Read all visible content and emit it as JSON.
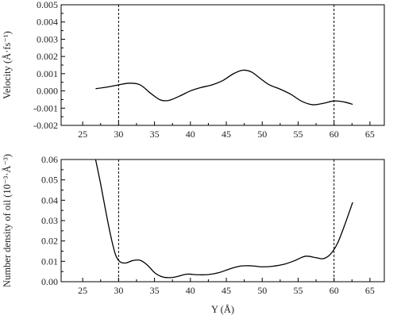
{
  "chart_data": [
    {
      "type": "line",
      "xlabel": "",
      "ylabel": "Velocity (Å·fs⁻¹)",
      "xlim": [
        22,
        67
      ],
      "ylim": [
        -0.002,
        0.005
      ],
      "xticks": [
        25,
        30,
        35,
        40,
        45,
        50,
        55,
        60,
        65
      ],
      "yticks": [
        -0.002,
        -0.001,
        0.0,
        0.001,
        0.002,
        0.003,
        0.004,
        0.005
      ],
      "ytick_labels": [
        "-0.002",
        "-0.001",
        "0.000",
        "0.001",
        "0.002",
        "0.003",
        "0.004",
        "0.005"
      ],
      "vlines": [
        30,
        60
      ],
      "grid": false,
      "series": [
        {
          "x": [
            26.8,
            28.5,
            30.0,
            31.5,
            33.0,
            34.5,
            35.8,
            37.0,
            38.5,
            40.0,
            41.5,
            43.0,
            44.5,
            46.0,
            47.3,
            48.5,
            49.8,
            51.0,
            52.5,
            54.0,
            55.5,
            57.0,
            58.5,
            60.0,
            61.5,
            62.6
          ],
          "y": [
            0.00013,
            0.00023,
            0.00035,
            0.00045,
            0.00035,
            -0.00015,
            -0.00052,
            -0.00055,
            -0.0003,
            0.0,
            0.0002,
            0.00035,
            0.0006,
            0.001,
            0.0012,
            0.0011,
            0.0007,
            0.00035,
            0.0001,
            -0.0002,
            -0.0006,
            -0.0008,
            -0.00072,
            -0.00058,
            -0.00065,
            -0.00078
          ]
        }
      ]
    },
    {
      "type": "line",
      "xlabel": "Y (Å)",
      "ylabel": "Number density of oil (10⁻³·Å⁻³)",
      "xlim": [
        22,
        67
      ],
      "ylim": [
        0,
        0.06
      ],
      "xticks": [
        25,
        30,
        35,
        40,
        45,
        50,
        55,
        60,
        65
      ],
      "yticks": [
        0.0,
        0.01,
        0.02,
        0.03,
        0.04,
        0.05,
        0.06
      ],
      "ytick_labels": [
        "0.00",
        "0.01",
        "0.02",
        "0.03",
        "0.04",
        "0.05",
        "0.06"
      ],
      "vlines": [
        30,
        60
      ],
      "grid": false,
      "series": [
        {
          "x": [
            26.8,
            27.5,
            28.3,
            29.0,
            29.6,
            30.2,
            31.0,
            32.0,
            33.0,
            34.0,
            35.0,
            36.0,
            37.0,
            38.0,
            39.5,
            41.0,
            42.5,
            44.0,
            45.5,
            47.0,
            48.5,
            50.0,
            51.5,
            53.0,
            54.5,
            56.0,
            57.5,
            58.5,
            59.5,
            60.5,
            61.5,
            62.6
          ],
          "y": [
            0.06,
            0.048,
            0.033,
            0.021,
            0.013,
            0.0098,
            0.0092,
            0.0104,
            0.0105,
            0.0082,
            0.0045,
            0.0025,
            0.002,
            0.0024,
            0.0037,
            0.0034,
            0.0035,
            0.0045,
            0.0063,
            0.0077,
            0.0078,
            0.0073,
            0.0076,
            0.0085,
            0.0103,
            0.0125,
            0.0118,
            0.0113,
            0.0135,
            0.019,
            0.028,
            0.039
          ]
        }
      ]
    }
  ]
}
